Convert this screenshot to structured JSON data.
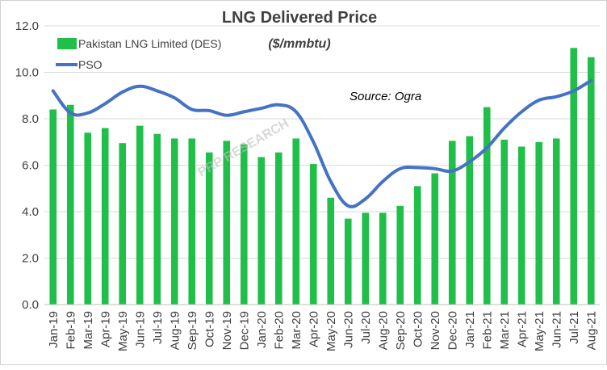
{
  "chart_data": {
    "type": "bar",
    "title": "LNG Delivered Price",
    "subtitle": "($/mmbtu)",
    "annotation": "Source: Ogra",
    "watermark": "PRP RESEARCH",
    "ylim": [
      0,
      12
    ],
    "yticks": [
      "0.0",
      "2.0",
      "4.0",
      "6.0",
      "8.0",
      "10.0",
      "12.0"
    ],
    "grid": true,
    "legend_placement": "top-left",
    "categories": [
      "Jan-19",
      "Feb-19",
      "Mar-19",
      "Apr-19",
      "May-19",
      "Jun-19",
      "Jul-19",
      "Aug-19",
      "Sep-19",
      "Oct-19",
      "Nov-19",
      "Dec-19",
      "Jan-20",
      "Feb-20",
      "Mar-20",
      "Apr-20",
      "May-20",
      "Jun-20",
      "Jul-20",
      "Aug-20",
      "Sep-20",
      "Oct-20",
      "Nov-20",
      "Dec-20",
      "Jan-21",
      "Feb-21",
      "Mar-21",
      "Apr-21",
      "May-21",
      "Jun-21",
      "Jul-21",
      "Aug-21"
    ],
    "series": [
      {
        "name": "Pakistan LNG Limited (DES)",
        "type": "bar",
        "color": "#1fbf4a",
        "values": [
          8.4,
          8.6,
          7.4,
          7.6,
          6.95,
          7.7,
          7.35,
          7.15,
          7.15,
          6.55,
          7.05,
          6.9,
          6.35,
          6.55,
          7.15,
          6.05,
          4.6,
          3.7,
          3.95,
          3.95,
          4.25,
          5.1,
          5.65,
          7.05,
          7.25,
          8.5,
          7.1,
          6.8,
          7.0,
          7.15,
          11.05,
          10.65
        ]
      },
      {
        "name": "PSO",
        "type": "line",
        "color": "#4472c4",
        "values": [
          9.2,
          8.25,
          8.25,
          8.65,
          9.15,
          9.4,
          9.2,
          8.9,
          8.4,
          8.35,
          8.15,
          8.3,
          8.45,
          8.6,
          8.3,
          7.0,
          5.3,
          4.25,
          4.55,
          5.3,
          5.85,
          5.9,
          5.85,
          5.75,
          6.15,
          6.75,
          7.6,
          8.3,
          8.8,
          8.95,
          9.2,
          9.65
        ]
      }
    ]
  }
}
